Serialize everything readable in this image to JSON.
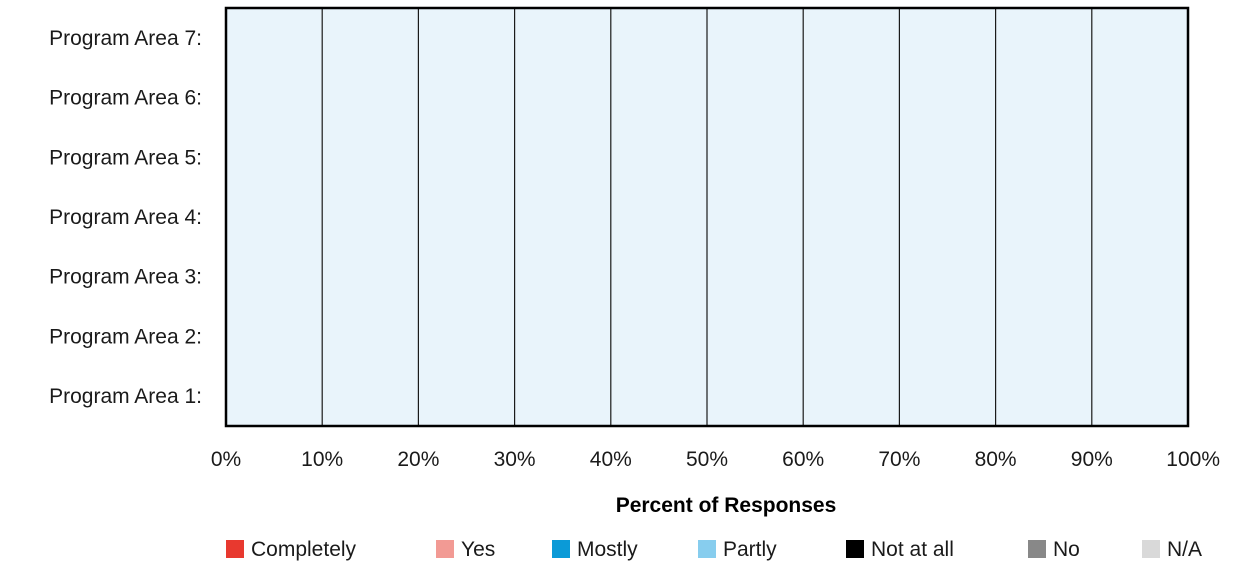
{
  "chart_data": {
    "type": "bar",
    "orientation": "horizontal",
    "stacked": true,
    "title": "",
    "xlabel": "Percent of Responses",
    "ylabel": "",
    "categories": [
      "Program Area 1:",
      "Program Area 2:",
      "Program Area 3:",
      "Program Area 4:",
      "Program Area 5:",
      "Program Area 6:",
      "Program Area 7:"
    ],
    "series": [
      {
        "name": "Completely",
        "color": "#e8392f",
        "values": [
          0,
          0,
          0,
          0,
          0,
          0,
          0
        ]
      },
      {
        "name": "Yes",
        "color": "#f29a94",
        "values": [
          0,
          0,
          0,
          0,
          0,
          0,
          0
        ]
      },
      {
        "name": "Mostly",
        "color": "#0b9ad7",
        "values": [
          0,
          0,
          0,
          0,
          0,
          0,
          0
        ]
      },
      {
        "name": "Partly",
        "color": "#87cdee",
        "values": [
          0,
          0,
          0,
          0,
          0,
          0,
          0
        ]
      },
      {
        "name": "Not at all",
        "color": "#000000",
        "values": [
          0,
          0,
          0,
          0,
          0,
          0,
          0
        ]
      },
      {
        "name": "No",
        "color": "#888888",
        "values": [
          0,
          0,
          0,
          0,
          0,
          0,
          0
        ]
      },
      {
        "name": "N/A",
        "color": "#d9d9d9",
        "values": [
          0,
          0,
          0,
          0,
          0,
          0,
          0
        ]
      }
    ],
    "xlim": [
      0,
      100
    ],
    "x_ticks": [
      "0%",
      "10%",
      "20%",
      "30%",
      "40%",
      "50%",
      "60%",
      "70%",
      "80%",
      "90%",
      "100%"
    ],
    "x_tick_values": [
      0,
      10,
      20,
      30,
      40,
      50,
      60,
      70,
      80,
      90,
      100
    ],
    "grid": true,
    "legend_position": "bottom",
    "plot_background": "#e9f4fb"
  }
}
